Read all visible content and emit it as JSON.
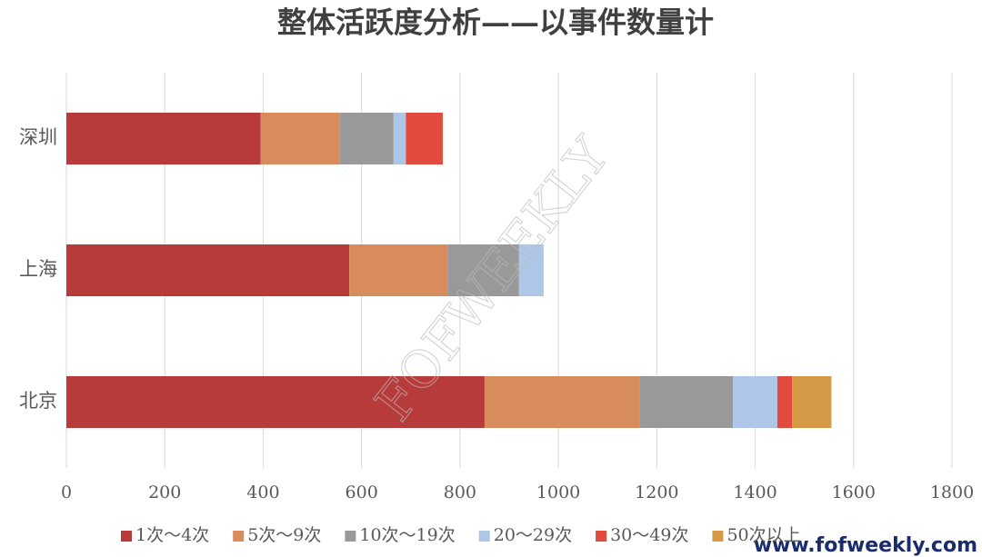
{
  "chart_data": {
    "type": "stacked-bar-horizontal",
    "title": "整体活跃度分析——以事件数量计",
    "categories": [
      "深圳",
      "上海",
      "北京"
    ],
    "series": [
      {
        "name": "1次～4次",
        "color": "#b83b3b",
        "values": [
          395,
          575,
          850
        ]
      },
      {
        "name": "5次～9次",
        "color": "#d98c5b",
        "values": [
          160,
          200,
          315
        ]
      },
      {
        "name": "10次～19次",
        "color": "#999999",
        "values": [
          110,
          145,
          190
        ]
      },
      {
        "name": "20～29次",
        "color": "#aec6e8",
        "values": [
          25,
          50,
          90
        ]
      },
      {
        "name": "30～49次",
        "color": "#e04b3d",
        "values": [
          75,
          0,
          30
        ]
      },
      {
        "name": "50次以上",
        "color": "#d49a45",
        "values": [
          0,
          0,
          80
        ]
      }
    ],
    "xlim": [
      0,
      1800
    ],
    "xticks": [
      0,
      200,
      400,
      600,
      800,
      1000,
      1200,
      1400,
      1600,
      1800
    ],
    "grid": true,
    "legend": "bottom"
  },
  "watermark": "FOFWEEKLY",
  "website": "www.fofweekly.com"
}
